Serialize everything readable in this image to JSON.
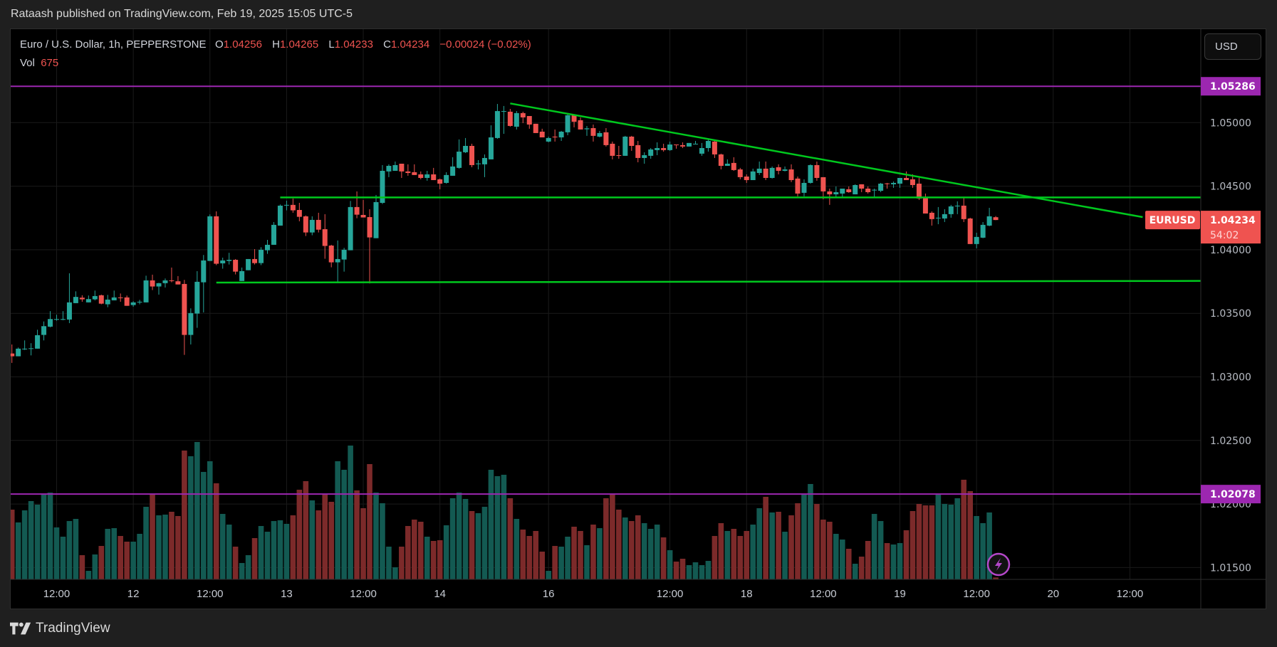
{
  "header": {
    "publish_text": "Rataash published on TradingView.com, Feb 19, 2025 15:05 UTC-5"
  },
  "legend": {
    "symbol": "Euro / U.S. Dollar, 1h, PEPPERSTONE",
    "o_label": "O",
    "o": "1.04256",
    "h_label": "H",
    "h": "1.04265",
    "l_label": "L",
    "l": "1.04233",
    "c_label": "C",
    "c": "1.04234",
    "change": "−0.00024 (−0.02%)",
    "vol_label": "Vol",
    "vol": "675"
  },
  "currency_button": "USD",
  "footer": {
    "brand": "TradingView"
  },
  "colors": {
    "up": "#26a69a",
    "down": "#ef5350",
    "vol_up": "#135a52",
    "vol_down": "#7c2a2a",
    "trend_lines": "#00c81e",
    "levels": "#9c27b0",
    "background": "#000000"
  },
  "chart_data": {
    "type": "candlestick",
    "symbol": "EURUSD",
    "interval": "1h",
    "first_bar_time": "2025-02-11 05:00",
    "session_gap": {
      "from": "2025-02-14 17:00",
      "to": "2025-02-16 17:00"
    },
    "ylim": [
      1.0127,
      1.0558
    ],
    "grid": true,
    "price_ticks": [
      "1.05000",
      "1.04500",
      "1.04000",
      "1.03500",
      "1.03000",
      "1.02500",
      "1.02000",
      "1.01500"
    ],
    "time_ticks": [
      {
        "label": "12:00",
        "time": "2025-02-11 12:00"
      },
      {
        "label": "12",
        "time": "2025-02-12 00:00"
      },
      {
        "label": "12:00",
        "time": "2025-02-12 12:00"
      },
      {
        "label": "13",
        "time": "2025-02-13 00:00"
      },
      {
        "label": "12:00",
        "time": "2025-02-13 12:00"
      },
      {
        "label": "14",
        "time": "2025-02-14 00:00"
      },
      {
        "label": "16",
        "time": "2025-02-16 17:00"
      },
      {
        "label": "12:00",
        "time": "2025-02-17 12:00"
      },
      {
        "label": "18",
        "time": "2025-02-18 00:00"
      },
      {
        "label": "12:00",
        "time": "2025-02-18 12:00"
      },
      {
        "label": "19",
        "time": "2025-02-19 00:00"
      },
      {
        "label": "12:00",
        "time": "2025-02-19 12:00"
      },
      {
        "label": "20",
        "time": "2025-02-20 00:00"
      },
      {
        "label": "12:00",
        "time": "2025-02-20 12:00"
      }
    ],
    "candle_fields": [
      "open",
      "high",
      "low",
      "close",
      "volume"
    ],
    "candles": [
      [
        1.03184,
        1.03255,
        1.0311,
        1.03162,
        24700
      ],
      [
        1.03162,
        1.03231,
        1.03162,
        1.03222,
        20160
      ],
      [
        1.03216,
        1.03287,
        1.03212,
        1.03222,
        24440
      ],
      [
        1.03222,
        1.03265,
        1.03169,
        1.03225,
        27720
      ],
      [
        1.03222,
        1.03371,
        1.03222,
        1.03328,
        26460
      ],
      [
        1.0333,
        1.03436,
        1.03287,
        1.03399,
        30240
      ],
      [
        1.03395,
        1.03517,
        1.0339,
        1.03455,
        30740
      ],
      [
        1.03449,
        1.03489,
        1.03442,
        1.03455,
        18400
      ],
      [
        1.03449,
        1.03517,
        1.03446,
        1.03455,
        15120
      ],
      [
        1.03451,
        1.03815,
        1.03423,
        1.03586,
        20660
      ],
      [
        1.0358,
        1.03673,
        1.0358,
        1.03629,
        21420
      ],
      [
        1.03623,
        1.03642,
        1.03591,
        1.0361,
        8570
      ],
      [
        1.03586,
        1.0364,
        1.03586,
        1.03612,
        3020
      ],
      [
        1.0361,
        1.03679,
        1.03602,
        1.03636,
        8820
      ],
      [
        1.03642,
        1.03647,
        1.03571,
        1.03576,
        11840
      ],
      [
        1.03571,
        1.03645,
        1.03548,
        1.03608,
        17890
      ],
      [
        1.03602,
        1.03679,
        1.03602,
        1.03625,
        18140
      ],
      [
        1.03625,
        1.03656,
        1.03591,
        1.03621,
        15370
      ],
      [
        1.03625,
        1.0364,
        1.03559,
        1.03559,
        13360
      ],
      [
        1.03565,
        1.03595,
        1.03552,
        1.03586,
        13360
      ],
      [
        1.03587,
        1.03606,
        1.03571,
        1.03591,
        16130
      ],
      [
        1.03586,
        1.03796,
        1.03586,
        1.03759,
        25700
      ],
      [
        1.03759,
        1.03804,
        1.03683,
        1.03711,
        29990
      ],
      [
        1.03711,
        1.0374,
        1.03647,
        1.03737,
        22680
      ],
      [
        1.03737,
        1.03774,
        1.03703,
        1.03759,
        22930
      ],
      [
        1.03759,
        1.0386,
        1.03744,
        1.03754,
        23940
      ],
      [
        1.03752,
        1.03793,
        1.03727,
        1.03727,
        22430
      ],
      [
        1.03731,
        1.03763,
        1.03173,
        1.0333,
        45610
      ],
      [
        1.0333,
        1.03539,
        1.03255,
        1.03502,
        43600
      ],
      [
        1.03498,
        1.03832,
        1.03386,
        1.03748,
        48640
      ],
      [
        1.03744,
        1.03959,
        1.03507,
        1.03916,
        38050
      ],
      [
        1.03912,
        1.04278,
        1.03912,
        1.04263,
        41830
      ],
      [
        1.04263,
        1.04302,
        1.03879,
        1.0389,
        34020
      ],
      [
        1.03893,
        1.03938,
        1.03851,
        1.03916,
        23180
      ],
      [
        1.03912,
        1.03976,
        1.03884,
        1.03921,
        19400
      ],
      [
        1.03921,
        1.03927,
        1.03806,
        1.03828,
        11590
      ],
      [
        1.03754,
        1.0386,
        1.03754,
        1.03832,
        5800
      ],
      [
        1.03839,
        1.03927,
        1.03839,
        1.03927,
        8570
      ],
      [
        1.03927,
        1.04005,
        1.03884,
        1.03895,
        14620
      ],
      [
        1.03895,
        1.0402,
        1.03879,
        1.04,
        18900
      ],
      [
        1.03996,
        1.04078,
        1.03968,
        1.04039,
        16880
      ],
      [
        1.04039,
        1.04218,
        1.04039,
        1.04196,
        20660
      ],
      [
        1.0419,
        1.04356,
        1.0419,
        1.04347,
        20920
      ],
      [
        1.04349,
        1.04386,
        1.0431,
        1.04353,
        19660
      ],
      [
        1.04353,
        1.04403,
        1.04291,
        1.0431,
        22680
      ],
      [
        1.04313,
        1.04369,
        1.04224,
        1.04259,
        31750
      ],
      [
        1.04263,
        1.0427,
        1.04108,
        1.04136,
        34780
      ],
      [
        1.04136,
        1.04263,
        1.04114,
        1.04235,
        27970
      ],
      [
        1.04235,
        1.04291,
        1.04136,
        1.04158,
        24440
      ],
      [
        1.04162,
        1.0428,
        1.03929,
        1.0403,
        29990
      ],
      [
        1.04033,
        1.04039,
        1.03862,
        1.03901,
        27470
      ],
      [
        1.03901,
        1.04073,
        1.0375,
        1.03927,
        41830
      ],
      [
        1.03923,
        1.04015,
        1.03828,
        1.04,
        38810
      ],
      [
        1.03996,
        1.04384,
        1.03996,
        1.04336,
        47380
      ],
      [
        1.04336,
        1.04459,
        1.04248,
        1.04276,
        31500
      ],
      [
        1.04274,
        1.04392,
        1.04254,
        1.04254,
        25200
      ],
      [
        1.04257,
        1.04319,
        1.03735,
        1.04097,
        40820
      ],
      [
        1.04091,
        1.04431,
        1.04091,
        1.04375,
        30740
      ],
      [
        1.04369,
        1.04666,
        1.0436,
        1.04621,
        26960
      ],
      [
        1.04616,
        1.04672,
        1.04571,
        1.0466,
        11590
      ],
      [
        1.04621,
        1.04694,
        1.04621,
        1.04666,
        4280
      ],
      [
        1.04677,
        1.04677,
        1.04565,
        1.04616,
        11590
      ],
      [
        1.04616,
        1.04672,
        1.04582,
        1.04604,
        18900
      ],
      [
        1.0461,
        1.04672,
        1.04588,
        1.04588,
        21170
      ],
      [
        1.04593,
        1.04616,
        1.04554,
        1.04565,
        20410
      ],
      [
        1.04565,
        1.04621,
        1.04543,
        1.04593,
        15120
      ],
      [
        1.04593,
        1.04644,
        1.04548,
        1.04548,
        13610
      ],
      [
        1.04554,
        1.0456,
        1.04476,
        1.0452,
        13860
      ],
      [
        1.04526,
        1.0461,
        1.0452,
        1.04588,
        19150
      ],
      [
        1.04582,
        1.04728,
        1.04582,
        1.04655,
        28730
      ],
      [
        1.04644,
        1.04868,
        1.04638,
        1.04772,
        30740
      ],
      [
        1.04767,
        1.04879,
        1.04761,
        1.04817,
        28480
      ],
      [
        1.04817,
        1.04834,
        1.04649,
        1.04666,
        24190
      ],
      [
        1.04673,
        1.04705,
        1.04632,
        1.04679,
        23440
      ],
      [
        1.04672,
        1.0475,
        1.04571,
        1.04722,
        25700
      ],
      [
        1.04711,
        1.04979,
        1.04711,
        1.04884,
        38810
      ],
      [
        1.04879,
        1.05147,
        1.04873,
        1.05091,
        36540
      ],
      [
        1.05088,
        1.05131,
        1.04912,
        1.05091,
        37040
      ],
      [
        1.05086,
        1.05108,
        1.04968,
        1.04974,
        28730
      ],
      [
        1.04968,
        1.05091,
        1.04946,
        1.05075,
        21420
      ],
      [
        1.05075,
        1.05086,
        1.04996,
        1.05041,
        17640
      ],
      [
        1.05052,
        1.05052,
        1.04952,
        1.04985,
        15370
      ],
      [
        1.04991,
        1.04991,
        1.04918,
        1.04918,
        17140
      ],
      [
        1.04929,
        1.04952,
        1.04884,
        1.04884,
        9830
      ],
      [
        1.04851,
        1.0489,
        1.04845,
        1.04879,
        3020
      ],
      [
        1.0489,
        1.04946,
        1.04851,
        1.04884,
        11840
      ],
      [
        1.04884,
        1.04935,
        1.04856,
        1.04929,
        11590
      ],
      [
        1.04924,
        1.05069,
        1.04901,
        1.05058,
        15120
      ],
      [
        1.05058,
        1.05063,
        1.04963,
        1.05007,
        18650
      ],
      [
        1.05019,
        1.05041,
        1.04946,
        1.04946,
        17140
      ],
      [
        1.04948,
        1.04974,
        1.04896,
        1.04955,
        12100
      ],
      [
        1.04957,
        1.04985,
        1.04851,
        1.04896,
        19400
      ],
      [
        1.0489,
        1.04935,
        1.04884,
        1.04918,
        18140
      ],
      [
        1.04924,
        1.04957,
        1.04812,
        1.04823,
        28730
      ],
      [
        1.04834,
        1.04851,
        1.04711,
        1.04739,
        29990
      ],
      [
        1.04744,
        1.04817,
        1.04716,
        1.04741,
        24700
      ],
      [
        1.04739,
        1.04896,
        1.04739,
        1.0489,
        21920
      ],
      [
        1.0489,
        1.04896,
        1.04778,
        1.04817,
        20660
      ],
      [
        1.04823,
        1.04856,
        1.04688,
        1.04722,
        22680
      ],
      [
        1.04722,
        1.04767,
        1.04677,
        1.04744,
        19910
      ],
      [
        1.04739,
        1.048,
        1.04716,
        1.04789,
        17890
      ],
      [
        1.04784,
        1.04845,
        1.04744,
        1.048,
        19400
      ],
      [
        1.048,
        1.04834,
        1.04772,
        1.04784,
        14870
      ],
      [
        1.04784,
        1.04851,
        1.04778,
        1.04828,
        10330
      ],
      [
        1.04828,
        1.04828,
        1.04795,
        1.04825,
        6300
      ],
      [
        1.04823,
        1.04845,
        1.048,
        1.04812,
        7310
      ],
      [
        1.04812,
        1.0484,
        1.04812,
        1.0484,
        5040
      ],
      [
        1.0483,
        1.04856,
        1.0483,
        1.04834,
        6050
      ],
      [
        1.04756,
        1.0484,
        1.04739,
        1.048,
        5040
      ],
      [
        1.048,
        1.04868,
        1.04772,
        1.04856,
        6550
      ],
      [
        1.04851,
        1.04862,
        1.04722,
        1.0475,
        15370
      ],
      [
        1.0475,
        1.04756,
        1.04632,
        1.0466,
        19910
      ],
      [
        1.0466,
        1.04711,
        1.0466,
        1.04677,
        17140
      ],
      [
        1.04683,
        1.04728,
        1.04621,
        1.04627,
        17890
      ],
      [
        1.04632,
        1.04644,
        1.04554,
        1.04571,
        15370
      ],
      [
        1.04576,
        1.04593,
        1.04526,
        1.04548,
        17140
      ],
      [
        1.04548,
        1.04638,
        1.04548,
        1.04616,
        19400
      ],
      [
        1.04604,
        1.04694,
        1.04588,
        1.04638,
        25200
      ],
      [
        1.04638,
        1.04694,
        1.04548,
        1.04565,
        29230
      ],
      [
        1.04565,
        1.04655,
        1.0456,
        1.04644,
        23690
      ],
      [
        1.04649,
        1.04672,
        1.04593,
        1.04621,
        23940
      ],
      [
        1.04621,
        1.04655,
        1.04616,
        1.04632,
        16880
      ],
      [
        1.04632,
        1.04672,
        1.04532,
        1.04548,
        22680
      ],
      [
        1.0456,
        1.04576,
        1.0442,
        1.04442,
        26960
      ],
      [
        1.04448,
        1.04554,
        1.0442,
        1.04526,
        29990
      ],
      [
        1.04526,
        1.04672,
        1.0452,
        1.04666,
        33770
      ],
      [
        1.04666,
        1.04694,
        1.04543,
        1.04565,
        26710
      ],
      [
        1.04571,
        1.04571,
        1.04397,
        1.04459,
        21170
      ],
      [
        1.04459,
        1.04481,
        1.04353,
        1.04436,
        20410
      ],
      [
        1.04436,
        1.04498,
        1.04414,
        1.04453,
        16130
      ],
      [
        1.04442,
        1.04481,
        1.04414,
        1.04481,
        14110
      ],
      [
        1.04476,
        1.04498,
        1.04448,
        1.04453,
        10840
      ],
      [
        1.04436,
        1.04515,
        1.04436,
        1.04509,
        5540
      ],
      [
        1.04515,
        1.04515,
        1.04453,
        1.04481,
        8060
      ],
      [
        1.04481,
        1.04498,
        1.04442,
        1.04453,
        13610
      ],
      [
        1.04468,
        1.04481,
        1.04414,
        1.04472,
        23180
      ],
      [
        1.04464,
        1.04526,
        1.04453,
        1.0452,
        20660
      ],
      [
        1.04522,
        1.04526,
        1.04481,
        1.04517,
        12850
      ],
      [
        1.04515,
        1.04537,
        1.04487,
        1.04526,
        12350
      ],
      [
        1.0452,
        1.04565,
        1.04487,
        1.04565,
        12850
      ],
      [
        1.04565,
        1.04616,
        1.04548,
        1.04548,
        17390
      ],
      [
        1.04554,
        1.04593,
        1.04487,
        1.04509,
        24190
      ],
      [
        1.0452,
        1.04565,
        1.04392,
        1.04403,
        26710
      ],
      [
        1.04408,
        1.04442,
        1.04285,
        1.04285,
        26210
      ],
      [
        1.04291,
        1.04302,
        1.0419,
        1.04241,
        26210
      ],
      [
        1.04248,
        1.04336,
        1.04201,
        1.04252,
        30240
      ],
      [
        1.04246,
        1.04319,
        1.04218,
        1.0428,
        26710
      ],
      [
        1.0428,
        1.04353,
        1.04252,
        1.04341,
        26460
      ],
      [
        1.04341,
        1.04381,
        1.0428,
        1.04347,
        28730
      ],
      [
        1.04347,
        1.04414,
        1.04218,
        1.04241,
        35280
      ],
      [
        1.04246,
        1.04252,
        1.04045,
        1.04045,
        31250
      ],
      [
        1.04045,
        1.04134,
        1.04011,
        1.04101,
        22430
      ],
      [
        1.04095,
        1.04218,
        1.04091,
        1.04196,
        19910
      ],
      [
        1.0419,
        1.0433,
        1.04185,
        1.04263,
        23690
      ],
      [
        1.04256,
        1.04265,
        1.04233,
        1.04234,
        675
      ]
    ],
    "drawings": [
      {
        "type": "horizontal_line",
        "color": "levels",
        "price": 1.05286,
        "label": "1.05286"
      },
      {
        "type": "horizontal_line",
        "color": "levels",
        "price": 1.02078,
        "label": "1.02078"
      },
      {
        "type": "horizontal_ray",
        "color": "trend_lines",
        "time": "2025-02-12 23:00",
        "price": 1.04412
      },
      {
        "type": "ray",
        "color": "trend_lines",
        "from": {
          "time": "2025-02-12 13:00",
          "price": 1.03742
        },
        "to_price_at_axis": 1.03755
      },
      {
        "type": "trend_line",
        "color": "trend_lines",
        "from": {
          "time": "2025-02-14 11:00",
          "price": 1.05151
        },
        "to": {
          "time": "2025-02-20 14:00",
          "price": 1.04257
        }
      }
    ],
    "last_price": {
      "symbol_label": "EURUSD",
      "price": "1.04234",
      "countdown": "54:02"
    }
  }
}
